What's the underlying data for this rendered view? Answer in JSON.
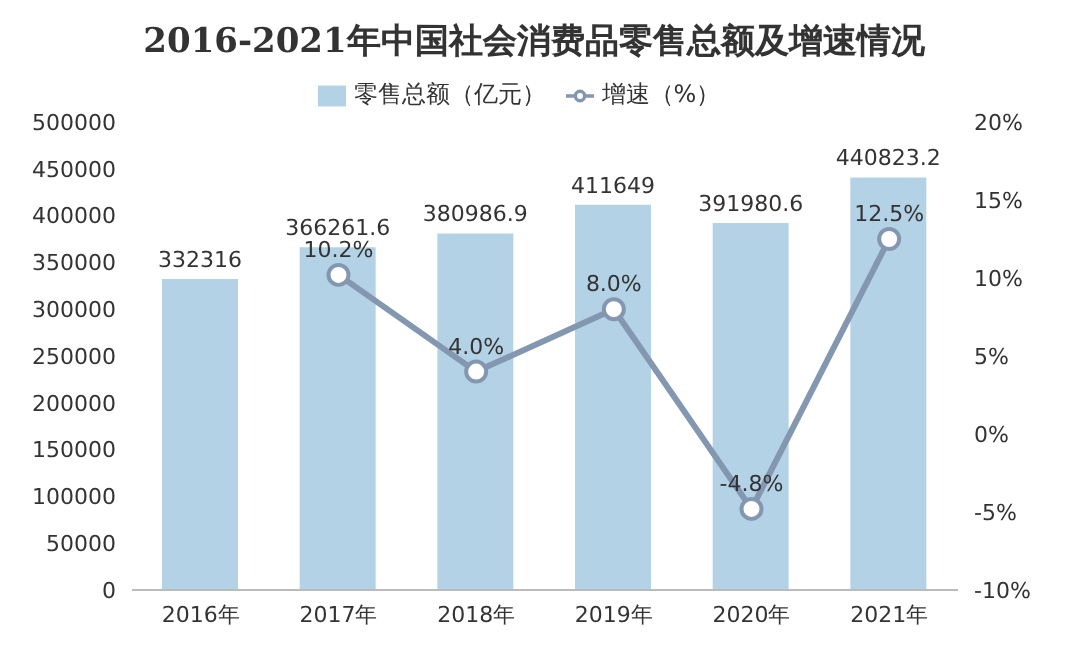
{
  "chart_data": {
    "type": "bar",
    "title": "2016-2021年中国社会消费品零售总额及增速情况",
    "categories": [
      "2016年",
      "2017年",
      "2018年",
      "2019年",
      "2020年",
      "2021年"
    ],
    "series": [
      {
        "name": "零售总额（亿元）",
        "color": "#b4d2e6",
        "values": [
          332316,
          366261.6,
          380986.9,
          411649,
          391980.6,
          440823.2
        ],
        "value_labels": [
          "332316",
          "366261.6",
          "380986.9",
          "411649",
          "391980.6",
          "440823.2"
        ]
      },
      {
        "name": "增速（%）",
        "type": "line",
        "axis": "y2",
        "color": "#8497b0",
        "marker": "circle",
        "values": [
          null,
          10.2,
          4.0,
          8.0,
          -4.8,
          12.5
        ],
        "value_labels": [
          null,
          "10.2%",
          "4.0%",
          "8.0%",
          "-4.8%",
          "12.5%"
        ]
      }
    ],
    "ylim": [
      0,
      500000
    ],
    "yticks": [
      0,
      50000,
      100000,
      150000,
      200000,
      250000,
      300000,
      350000,
      400000,
      450000,
      500000
    ],
    "y2lim": [
      -10,
      20
    ],
    "y2ticks": [
      {
        "value": -10,
        "label": "-10%"
      },
      {
        "value": -5,
        "label": "-5%"
      },
      {
        "value": 0,
        "label": "0%"
      },
      {
        "value": 5,
        "label": "5%"
      },
      {
        "value": 10,
        "label": "10%"
      },
      {
        "value": 15,
        "label": "15%"
      },
      {
        "value": 20,
        "label": "20%"
      }
    ],
    "legend": "top",
    "grid": false
  }
}
